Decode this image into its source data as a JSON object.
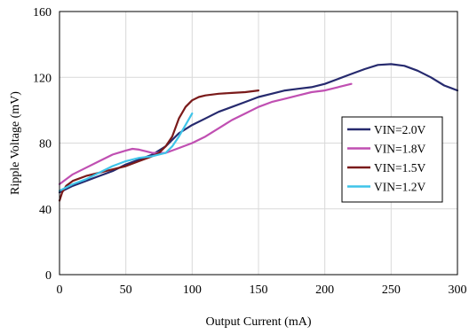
{
  "chart_data": {
    "type": "line",
    "title": "",
    "xlabel": "Output Current (mA)",
    "ylabel": "Ripple Voltage (mV)",
    "xlim": [
      0,
      300
    ],
    "ylim": [
      0,
      160
    ],
    "xticks": [
      0,
      50,
      100,
      150,
      200,
      250,
      300
    ],
    "yticks": [
      0,
      40,
      80,
      120,
      160
    ],
    "grid": true,
    "legend_position": "right-middle",
    "series": [
      {
        "name": "VIN=2.0V",
        "color": "#262a6e",
        "points": [
          [
            0,
            50
          ],
          [
            10,
            54
          ],
          [
            20,
            57
          ],
          [
            30,
            60
          ],
          [
            40,
            63
          ],
          [
            50,
            67
          ],
          [
            60,
            70
          ],
          [
            70,
            73
          ],
          [
            80,
            78
          ],
          [
            90,
            86
          ],
          [
            100,
            91
          ],
          [
            110,
            95
          ],
          [
            120,
            99
          ],
          [
            130,
            102
          ],
          [
            140,
            105
          ],
          [
            150,
            108
          ],
          [
            160,
            110
          ],
          [
            170,
            112
          ],
          [
            180,
            113
          ],
          [
            190,
            114
          ],
          [
            200,
            116
          ],
          [
            210,
            119
          ],
          [
            220,
            122
          ],
          [
            230,
            125
          ],
          [
            240,
            127.5
          ],
          [
            250,
            128
          ],
          [
            260,
            127
          ],
          [
            270,
            124
          ],
          [
            280,
            120
          ],
          [
            290,
            115
          ],
          [
            300,
            112
          ]
        ]
      },
      {
        "name": "VIN=1.8V",
        "color": "#c04fb2",
        "points": [
          [
            0,
            55
          ],
          [
            5,
            58
          ],
          [
            10,
            61
          ],
          [
            20,
            65
          ],
          [
            30,
            69
          ],
          [
            40,
            73
          ],
          [
            50,
            75.5
          ],
          [
            55,
            76.5
          ],
          [
            60,
            76
          ],
          [
            70,
            74
          ],
          [
            80,
            74
          ],
          [
            90,
            77
          ],
          [
            100,
            80
          ],
          [
            110,
            84
          ],
          [
            120,
            89
          ],
          [
            130,
            94
          ],
          [
            140,
            98
          ],
          [
            150,
            102
          ],
          [
            160,
            105
          ],
          [
            170,
            107
          ],
          [
            180,
            109
          ],
          [
            190,
            111
          ],
          [
            200,
            112
          ],
          [
            210,
            114
          ],
          [
            220,
            116
          ]
        ]
      },
      {
        "name": "VIN=1.5V",
        "color": "#7a1a1a",
        "points": [
          [
            0,
            45
          ],
          [
            2,
            50
          ],
          [
            5,
            54
          ],
          [
            10,
            57
          ],
          [
            20,
            60
          ],
          [
            30,
            62
          ],
          [
            40,
            64
          ],
          [
            50,
            66
          ],
          [
            60,
            69
          ],
          [
            70,
            72
          ],
          [
            75,
            74
          ],
          [
            80,
            78
          ],
          [
            85,
            84
          ],
          [
            90,
            95
          ],
          [
            95,
            102
          ],
          [
            100,
            106
          ],
          [
            105,
            108
          ],
          [
            110,
            109
          ],
          [
            120,
            110
          ],
          [
            130,
            110.5
          ],
          [
            140,
            111
          ],
          [
            150,
            112
          ]
        ]
      },
      {
        "name": "VIN=1.2V",
        "color": "#3ec4e9",
        "points": [
          [
            0,
            51
          ],
          [
            5,
            53
          ],
          [
            10,
            55
          ],
          [
            20,
            58
          ],
          [
            30,
            62
          ],
          [
            40,
            66
          ],
          [
            50,
            69
          ],
          [
            60,
            71
          ],
          [
            70,
            72
          ],
          [
            80,
            74
          ],
          [
            85,
            78
          ],
          [
            90,
            84
          ],
          [
            95,
            91
          ],
          [
            100,
            98
          ]
        ]
      }
    ]
  }
}
